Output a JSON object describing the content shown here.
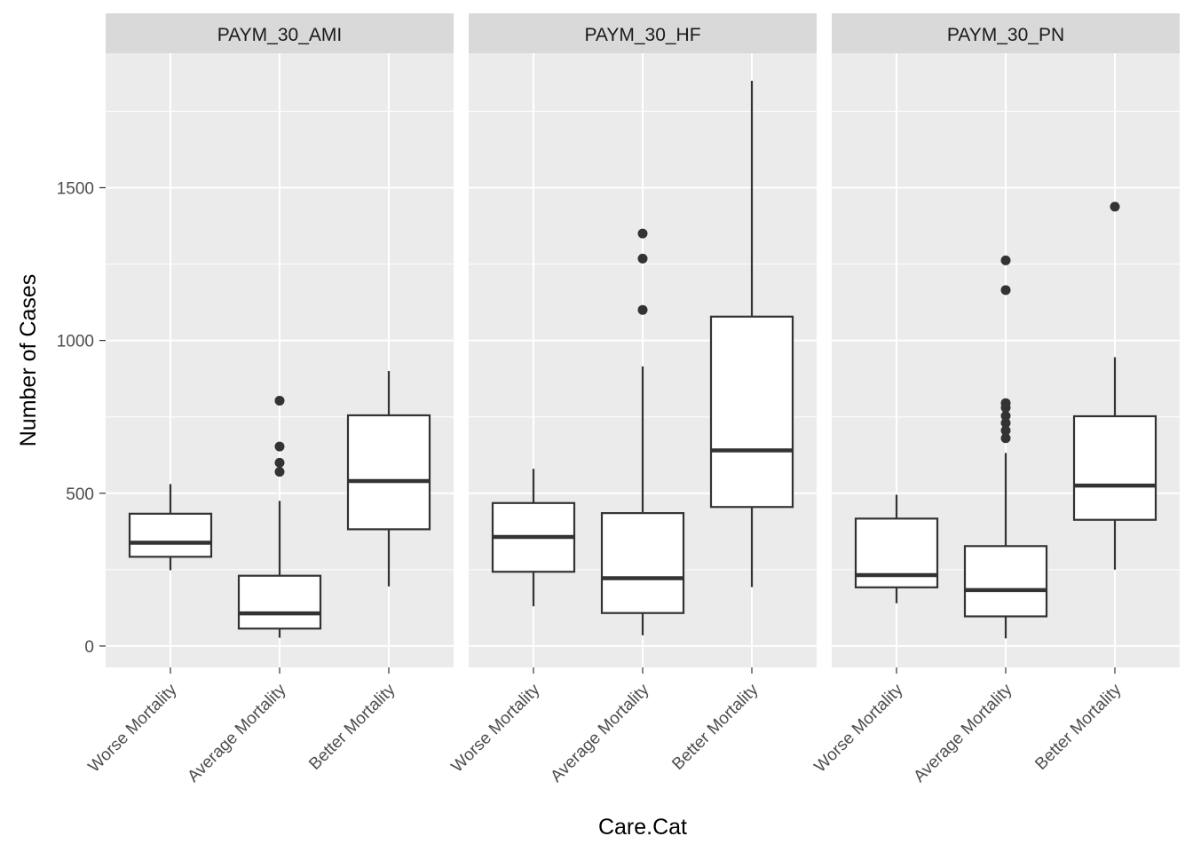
{
  "chart_data": {
    "type": "boxplot",
    "xlabel": "Care.Cat",
    "ylabel": "Number of Cases",
    "ylim": [
      -70,
      1940
    ],
    "yticks": [
      0,
      500,
      1000,
      1500
    ],
    "categories": [
      "Worse Mortality",
      "Average Mortality",
      "Better Mortality"
    ],
    "colors": {
      "panel_bg": "#ebebeb",
      "strip_bg": "#d9d9d9",
      "grid": "#ffffff",
      "box_fill": "#ffffff",
      "box_line": "#333333"
    },
    "panels": [
      {
        "name": "PAYM_30_AMI",
        "boxes": [
          {
            "category": "Worse Mortality",
            "low": 248,
            "q1": 292,
            "median": 338,
            "q3": 433,
            "high": 530,
            "outliers": []
          },
          {
            "category": "Average Mortality",
            "low": 27,
            "q1": 57,
            "median": 107,
            "q3": 230,
            "high": 475,
            "outliers": [
              570,
              600,
              653,
              803
            ]
          },
          {
            "category": "Better Mortality",
            "low": 195,
            "q1": 382,
            "median": 540,
            "q3": 755,
            "high": 900,
            "outliers": []
          }
        ]
      },
      {
        "name": "PAYM_30_HF",
        "boxes": [
          {
            "category": "Worse Mortality",
            "low": 130,
            "q1": 243,
            "median": 357,
            "q3": 468,
            "high": 580,
            "outliers": []
          },
          {
            "category": "Average Mortality",
            "low": 35,
            "q1": 108,
            "median": 222,
            "q3": 435,
            "high": 915,
            "outliers": [
              1100,
              1268,
              1350
            ]
          },
          {
            "category": "Better Mortality",
            "low": 193,
            "q1": 455,
            "median": 640,
            "q3": 1078,
            "high": 1850,
            "outliers": []
          }
        ]
      },
      {
        "name": "PAYM_30_PN",
        "boxes": [
          {
            "category": "Worse Mortality",
            "low": 140,
            "q1": 192,
            "median": 232,
            "q3": 417,
            "high": 495,
            "outliers": []
          },
          {
            "category": "Average Mortality",
            "low": 25,
            "q1": 97,
            "median": 183,
            "q3": 327,
            "high": 632,
            "outliers": [
              680,
              705,
              730,
              753,
              780,
              795,
              1165,
              1262
            ]
          },
          {
            "category": "Better Mortality",
            "low": 250,
            "q1": 413,
            "median": 525,
            "q3": 752,
            "high": 945,
            "outliers": [
              1438
            ]
          }
        ]
      }
    ]
  }
}
